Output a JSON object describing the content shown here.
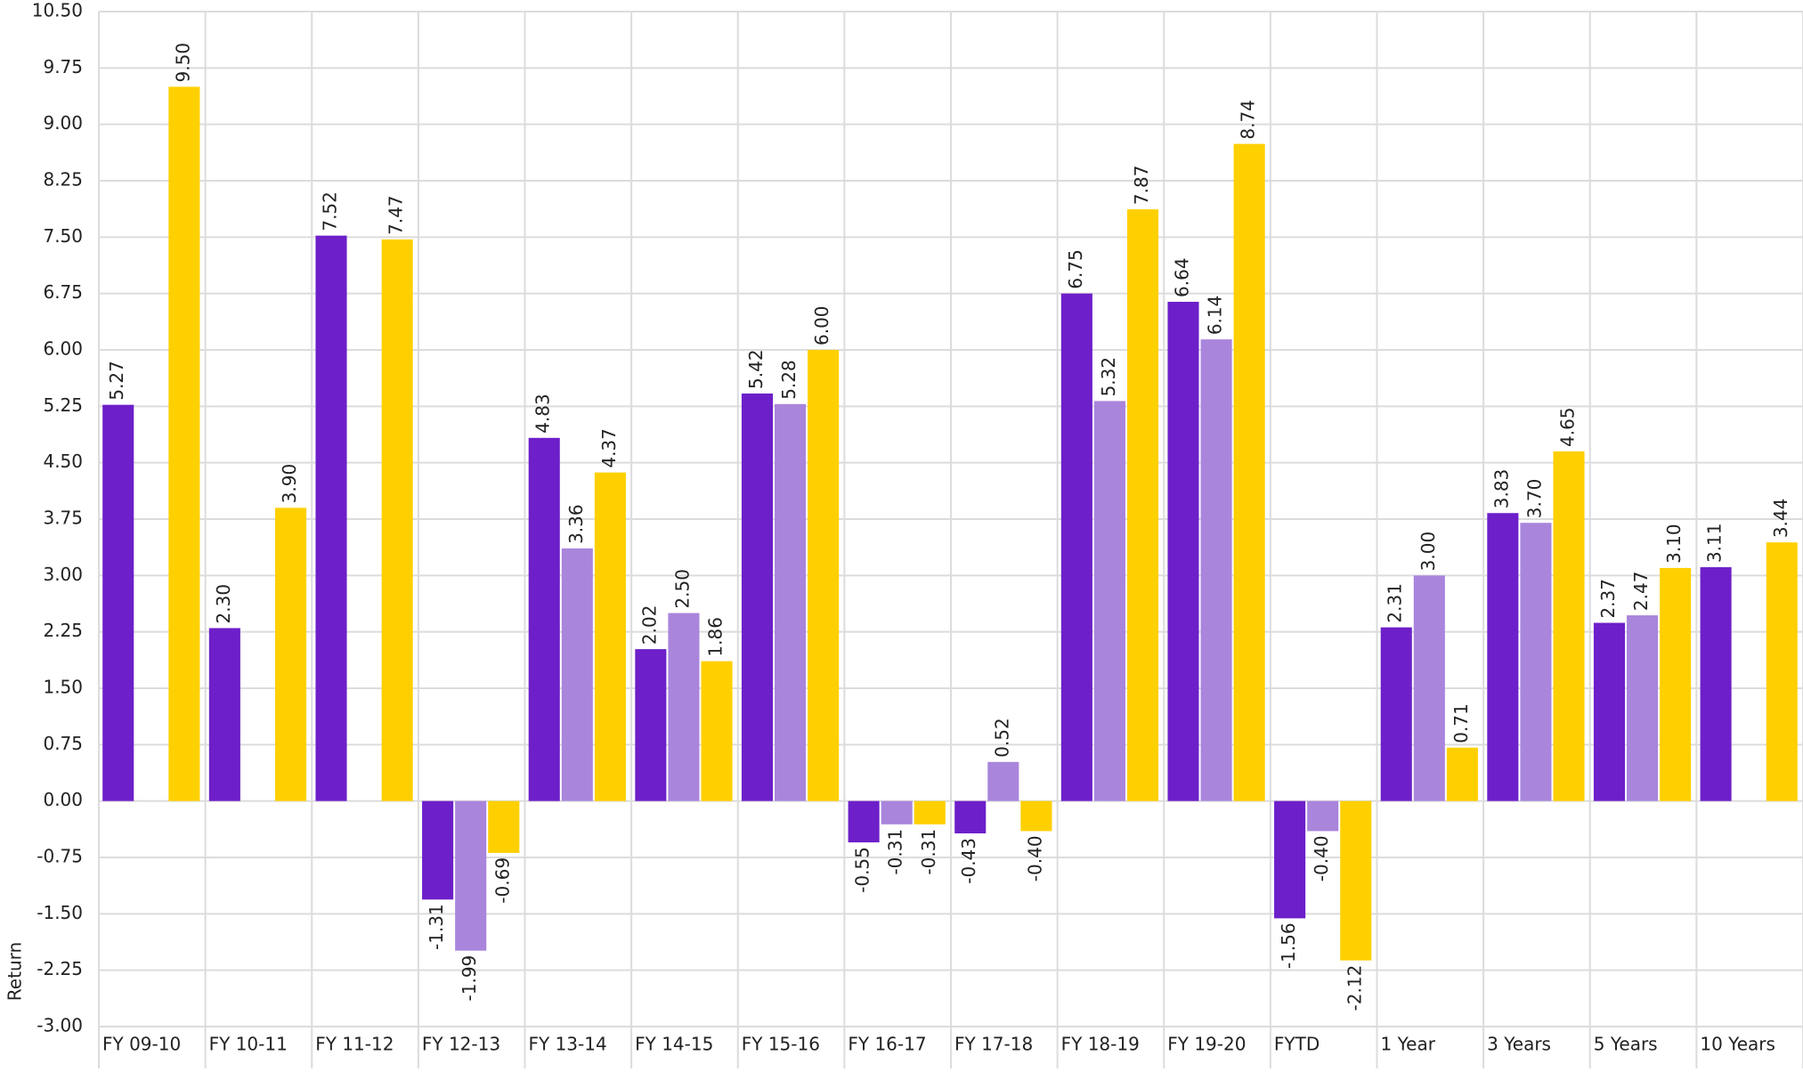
{
  "chart_data": {
    "type": "bar",
    "y_label": "Return",
    "categories": [
      "FY 09-10",
      "FY 10-11",
      "FY 11-12",
      "FY 12-13",
      "FY 13-14",
      "FY 14-15",
      "FY 15-16",
      "FY 16-17",
      "FY 17-18",
      "FY 18-19",
      "FY 19-20",
      "FYTD",
      "1 Year",
      "3 Years",
      "5 Years",
      "10 Years"
    ],
    "series": [
      {
        "color": "#6d1fc9",
        "values": [
          5.27,
          2.3,
          7.52,
          -1.31,
          4.83,
          2.02,
          5.42,
          -0.55,
          -0.43,
          6.75,
          6.64,
          -1.56,
          2.31,
          3.83,
          2.37,
          3.11
        ],
        "value_labels": [
          "5.27",
          "2.30",
          "7.52",
          "-1.31",
          "4.83",
          "2.02",
          "5.42",
          "-0.55",
          "-0.43",
          "6.75",
          "6.64",
          "-1.56",
          "2.31",
          "3.83",
          "2.37",
          "3.11"
        ]
      },
      {
        "color": "#a985dc",
        "values": [
          null,
          null,
          null,
          -1.99,
          3.36,
          2.5,
          5.28,
          -0.31,
          0.52,
          5.32,
          6.14,
          -0.4,
          3.0,
          3.7,
          2.47,
          null
        ],
        "value_labels": [
          null,
          null,
          null,
          "-1.99",
          "3.36",
          "2.50",
          "5.28",
          "-0.31",
          "0.52",
          "5.32",
          "6.14",
          "-0.40",
          "3.00",
          "3.70",
          "2.47",
          null
        ]
      },
      {
        "color": "#ffd000",
        "values": [
          9.5,
          3.9,
          7.47,
          -0.69,
          4.37,
          1.86,
          6.0,
          -0.31,
          -0.4,
          7.87,
          8.74,
          -2.12,
          0.71,
          4.65,
          3.1,
          3.44
        ],
        "value_labels": [
          "9.50",
          "3.90",
          "7.47",
          "-0.69",
          "4.37",
          "1.86",
          "6.00",
          "-0.31",
          "-0.40",
          "7.87",
          "8.74",
          "-2.12",
          "0.71",
          "4.65",
          "3.10",
          "3.44"
        ]
      }
    ],
    "ylim": [
      -3,
      10.5
    ],
    "yticks": [
      {
        "value": -3,
        "label": "-3.00"
      },
      {
        "value": -2.25,
        "label": "-2.25"
      },
      {
        "value": -1.5,
        "label": "-1.50"
      },
      {
        "value": -0.75,
        "label": "-0.75"
      },
      {
        "value": 0,
        "label": "0.00"
      },
      {
        "value": 0.75,
        "label": "0.75"
      },
      {
        "value": 1.5,
        "label": "1.50"
      },
      {
        "value": 2.25,
        "label": "2.25"
      },
      {
        "value": 3,
        "label": "3.00"
      },
      {
        "value": 3.75,
        "label": "3.75"
      },
      {
        "value": 4.5,
        "label": "4.50"
      },
      {
        "value": 5.25,
        "label": "5.25"
      },
      {
        "value": 6,
        "label": "6.00"
      },
      {
        "value": 6.75,
        "label": "6.75"
      },
      {
        "value": 7.5,
        "label": "7.50"
      },
      {
        "value": 8.25,
        "label": "8.25"
      },
      {
        "value": 9,
        "label": "9.00"
      },
      {
        "value": 9.75,
        "label": "9.75"
      },
      {
        "value": 10.5,
        "label": "10.50"
      }
    ],
    "grid": true
  }
}
